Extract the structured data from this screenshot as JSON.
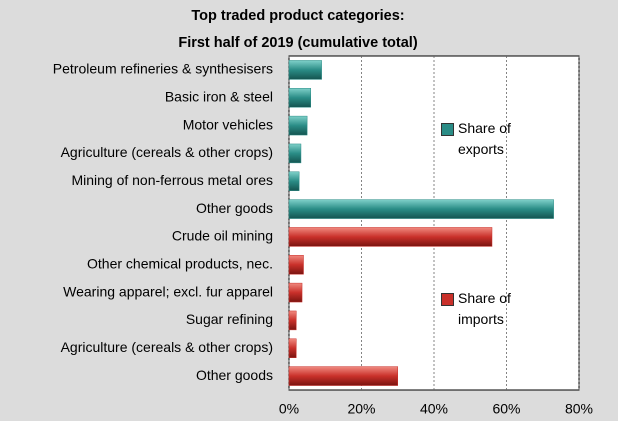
{
  "chart_data": {
    "type": "bar",
    "orientation": "horizontal",
    "title": "Top traded product categories:",
    "subtitle": "First half of 2019 (cumulative total)",
    "categories": [
      "Petroleum refineries & synthesisers",
      "Basic iron & steel",
      "Motor vehicles",
      "Agriculture (cereals & other crops)",
      "Mining of non-ferrous metal ores",
      "Other goods",
      "Crude oil mining",
      "Other chemical products, nec.",
      "Wearing apparel; excl. fur apparel",
      "Sugar refining",
      "Agriculture (cereals & other crops)",
      "Other goods"
    ],
    "series": [
      {
        "name": "Share of exports",
        "color": "#2a8c86",
        "values": [
          9,
          6,
          5,
          3.3,
          2.8,
          73,
          null,
          null,
          null,
          null,
          null,
          null
        ]
      },
      {
        "name": "Share of imports",
        "color": "#c9302a",
        "values": [
          null,
          null,
          null,
          null,
          null,
          null,
          56,
          4,
          3.6,
          2,
          2,
          30
        ]
      }
    ],
    "xlim": [
      0,
      80
    ],
    "xticks": [
      {
        "value": 0,
        "label": "0%"
      },
      {
        "value": 20,
        "label": "20%"
      },
      {
        "value": 40,
        "label": "40%"
      },
      {
        "value": 60,
        "label": "60%"
      },
      {
        "value": 80,
        "label": "80%"
      }
    ],
    "grid": true
  }
}
